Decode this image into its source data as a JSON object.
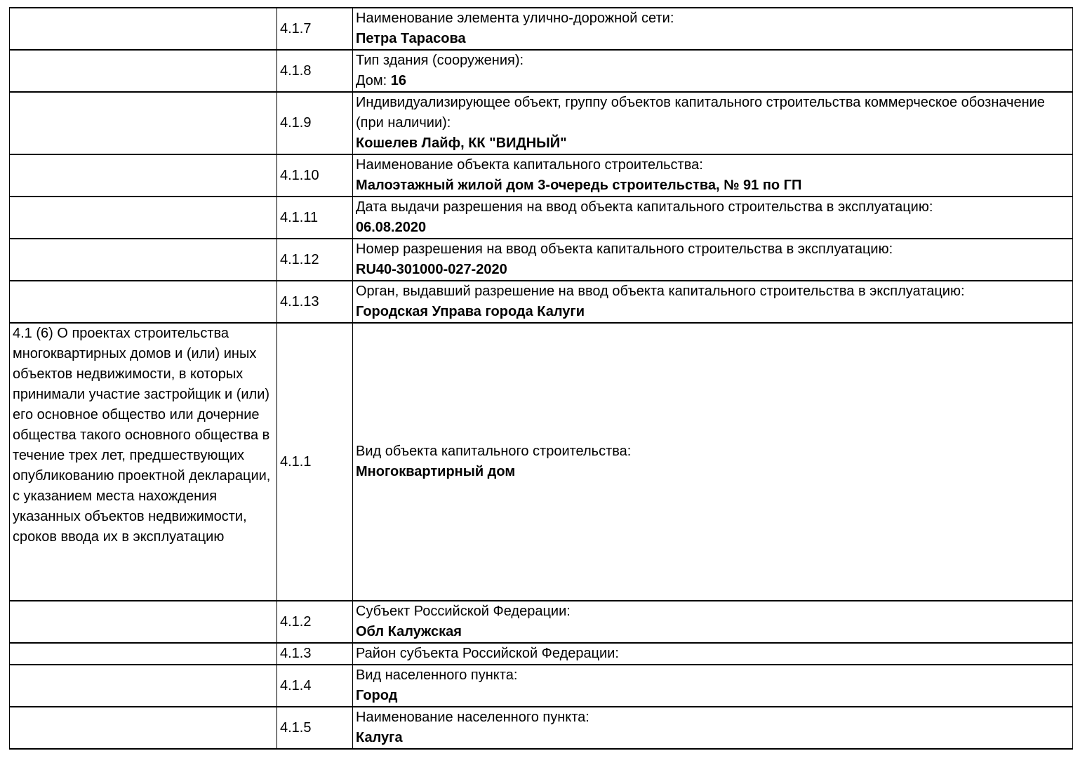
{
  "document": {
    "kind": "project-declaration-table",
    "colors": {
      "background": "#ffffff",
      "text": "#000000",
      "border": "#000000"
    }
  },
  "table": {
    "rows": [
      {
        "section": "",
        "num": "4.1.7",
        "label": "Наименование элемента улично-дорожной сети:",
        "value_prefix": "",
        "value": "Петра Тарасова"
      },
      {
        "section": "",
        "num": "4.1.8",
        "label": "Тип здания (сооружения):",
        "value_prefix": "Дом: ",
        "value": "16"
      },
      {
        "section": "",
        "num": "4.1.9",
        "label": "Индивидуализирующее объект, группу объектов капитального строительства коммерческое обозначение (при наличии):",
        "value_prefix": "",
        "value": "Кошелев Лайф, КК \"ВИДНЫЙ\""
      },
      {
        "section": "",
        "num": "4.1.10",
        "label": "Наименование объекта капитального строительства:",
        "value_prefix": "",
        "value": "Малоэтажный жилой дом 3-очередь строительства, № 91 по ГП"
      },
      {
        "section": "",
        "num": "4.1.11",
        "label": "Дата выдачи разрешения на ввод объекта капитального строительства в эксплуатацию:",
        "value_prefix": "",
        "value": "06.08.2020"
      },
      {
        "section": "",
        "num": "4.1.12",
        "label": "Номер разрешения на ввод объекта капитального строительства в эксплуатацию:",
        "value_prefix": "",
        "value": "RU40-301000-027-2020"
      },
      {
        "section": "",
        "num": "4.1.13",
        "label": "Орган, выдавший разрешение на ввод объекта капитального строительства в эксплуатацию:",
        "value_prefix": "",
        "value": "Городская Управа города Калуги"
      },
      {
        "section": "4.1 (6) О проектах строительства многоквартирных домов и (или) иных объектов недвижимости, в которых принимали участие застройщик и (или) его основное общество или дочерние общества такого основного общества в течение трех лет, предшествующих опубликованию проектной декларации, с указанием места нахождения указанных объектов недвижимости, сроков ввода их в эксплуатацию",
        "num": "4.1.1",
        "label": "Вид объекта капитального строительства:",
        "value_prefix": "",
        "value": "Многоквартирный дом"
      },
      {
        "section": "",
        "num": "4.1.2",
        "label": "Субъект Российской Федерации:",
        "value_prefix": "",
        "value": "Обл Калужская"
      },
      {
        "section": "",
        "num": "4.1.3",
        "label": "Район субъекта Российской Федерации:",
        "value_prefix": "",
        "value": ""
      },
      {
        "section": "",
        "num": "4.1.4",
        "label": "Вид населенного пункта:",
        "value_prefix": "",
        "value": "Город"
      },
      {
        "section": "",
        "num": "4.1.5",
        "label": "Наименование населенного пункта:",
        "value_prefix": "",
        "value": "Калуга"
      }
    ]
  }
}
